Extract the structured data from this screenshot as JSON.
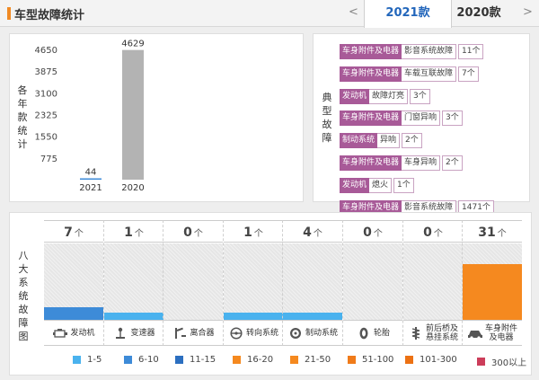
{
  "header": {
    "title": "车型故障统计",
    "prev": "<",
    "next": ">",
    "tabs": [
      {
        "label": "2021款",
        "active": true
      },
      {
        "label": "2020款",
        "active": false
      }
    ]
  },
  "year_chart": {
    "ylabel": [
      "各",
      "年",
      "款",
      "统",
      "计"
    ],
    "chart_data": {
      "type": "bar",
      "categories": [
        "2021",
        "2020"
      ],
      "values": [
        44,
        4629
      ],
      "ylim": [
        0,
        4650
      ],
      "yticks": [
        775,
        1550,
        2325,
        3100,
        3875,
        4650
      ],
      "colors": [
        "#3d8bd8",
        "#b3b3b3"
      ]
    }
  },
  "typical_faults": {
    "label": [
      "典",
      "型",
      "故",
      "障"
    ],
    "rows": [
      {
        "category": "车身附件及电器",
        "fault": "影音系统故障",
        "count": "11个"
      },
      {
        "category": "车身附件及电器",
        "fault": "车载互联故障",
        "count": "7个"
      },
      {
        "category": "发动机",
        "fault": "故障灯亮",
        "count": "3个"
      },
      {
        "category": "车身附件及电器",
        "fault": "门窗异响",
        "count": "3个"
      },
      {
        "category": "制动系统",
        "fault": "异响",
        "count": "2个"
      },
      {
        "category": "车身附件及电器",
        "fault": "车身异响",
        "count": "2个"
      },
      {
        "category": "发动机",
        "fault": "熄火",
        "count": "1个"
      },
      {
        "category": "车身附件及电器",
        "fault": "影音系统故障",
        "count": "1471个"
      }
    ]
  },
  "system_faults": {
    "label": [
      "八",
      "大",
      "系",
      "统",
      "故",
      "障",
      "图"
    ],
    "unit": "个",
    "max_scale": 31,
    "systems": [
      {
        "name": "发动机",
        "count": 7,
        "color": "#3d8bd8",
        "icon": "engine-icon"
      },
      {
        "name": "变速器",
        "count": 1,
        "color": "#4ab2ee",
        "icon": "gear-shift-icon"
      },
      {
        "name": "离合器",
        "count": 0,
        "color": "#4ab2ee",
        "icon": "clutch-pedal-icon"
      },
      {
        "name": "转向系统",
        "count": 1,
        "color": "#4ab2ee",
        "icon": "steering-wheel-icon"
      },
      {
        "name": "制动系统",
        "count": 4,
        "color": "#4ab2ee",
        "icon": "brake-disc-icon"
      },
      {
        "name": "轮胎",
        "count": 0,
        "color": "#4ab2ee",
        "icon": "tire-icon"
      },
      {
        "name": "前后桥及\n悬挂系统",
        "count": 0,
        "color": "#4ab2ee",
        "icon": "suspension-icon"
      },
      {
        "name": "车身附件\n及电器",
        "count": 31,
        "color": "#f5891f",
        "icon": "car-body-icon"
      }
    ]
  },
  "legend": [
    {
      "label": "1-5",
      "color": "#4ab2ee"
    },
    {
      "label": "6-10",
      "color": "#3d8bd8"
    },
    {
      "label": "11-15",
      "color": "#2c6fc0"
    },
    {
      "label": "16-20",
      "color": "#f5891f"
    },
    {
      "label": "21-50",
      "color": "#f5891f"
    },
    {
      "label": "51-100",
      "color": "#f07b1a"
    },
    {
      "label": "101-300",
      "color": "#ec7113"
    },
    {
      "label": "300以上",
      "color": "#cc3d5a"
    }
  ]
}
